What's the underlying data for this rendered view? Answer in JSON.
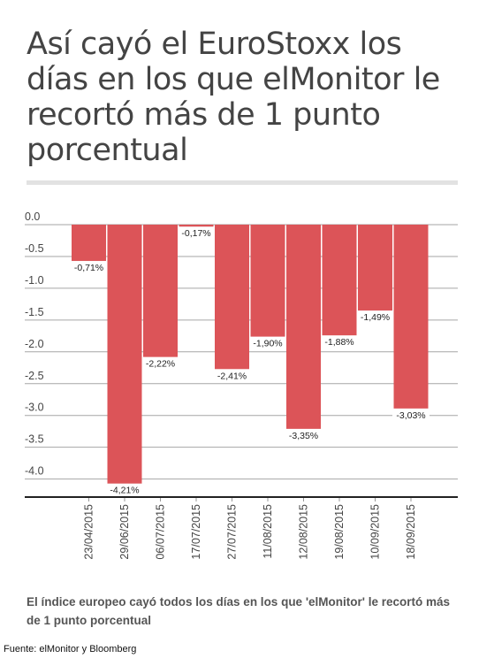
{
  "title": "Así cayó el EuroStoxx los días en los que elMonitor le recortó más de 1 punto porcentual",
  "description": "El índice europeo cayó todos los días en los que 'elMonitor' le recortó más de 1 punto porcentual",
  "source": "Fuente: elMonitor y Bloomberg",
  "colors": {
    "bar": "#dc5458",
    "grid": "#a6a6a6",
    "axis": "#222222",
    "tick": "#999999"
  },
  "chart_data": {
    "type": "bar",
    "categories": [
      "23/04/2015",
      "29/06/2015",
      "06/07/2015",
      "17/07/2015",
      "27/07/2015",
      "11/08/2015",
      "12/08/2015",
      "19/08/2015",
      "10/09/2015",
      "18/09/2015"
    ],
    "values": [
      -0.71,
      -4.21,
      -2.22,
      -0.17,
      -2.41,
      -1.9,
      -3.35,
      -1.88,
      -1.49,
      -3.03
    ],
    "data_labels": [
      "-0,71%",
      "-4,21%",
      "-2,22%",
      "-0,17%",
      "-2,41%",
      "-1,90%",
      "-3,35%",
      "-1,88%",
      "-1,49%",
      "-3,03%"
    ],
    "y_ticks": [
      0,
      -0.5,
      -1,
      -1.5,
      -2,
      -2.5,
      -3,
      -3.5,
      -4
    ],
    "y_tick_labels": [
      "0.0",
      "-0.5",
      "-1.0",
      "-1.5",
      "-2.0",
      "-2.5",
      "-3.0",
      "-3.5",
      "-4.0"
    ],
    "ylim": [
      -4.35,
      0
    ],
    "grid": true,
    "legend": false
  }
}
